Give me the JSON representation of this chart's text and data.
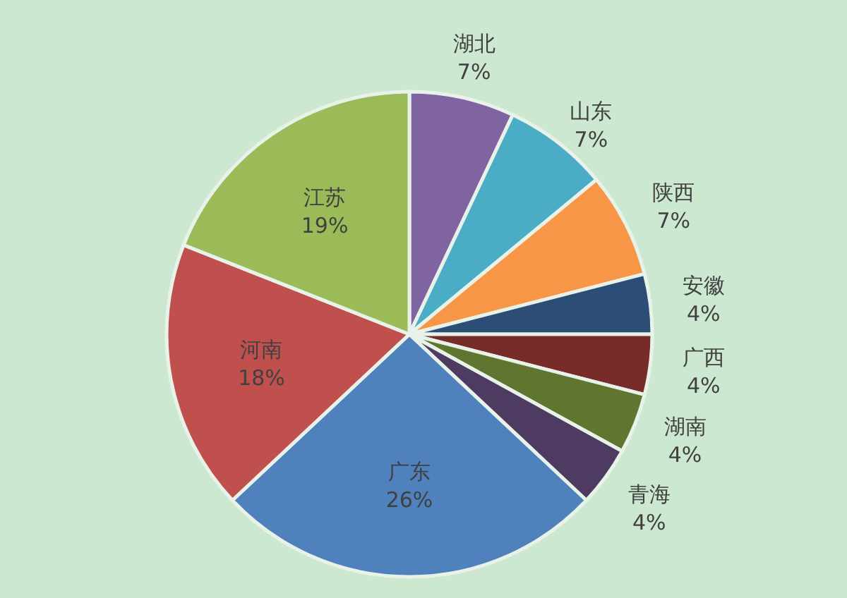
{
  "chart_data": {
    "type": "pie",
    "categories": [
      "湖北",
      "山东",
      "陕西",
      "安徽",
      "广西",
      "湖南",
      "青海",
      "广东",
      "河南",
      "江苏"
    ],
    "values": [
      7,
      7,
      7,
      4,
      4,
      4,
      4,
      26,
      18,
      19
    ],
    "colors": [
      "#8064a2",
      "#4bacc6",
      "#f79646",
      "#2c4d75",
      "#772c2a",
      "#5f7530",
      "#4d3b62",
      "#4f81bd",
      "#c0504d",
      "#9bbb59"
    ],
    "value_labels": [
      "7%",
      "7%",
      "7%",
      "4%",
      "4%",
      "4%",
      "4%",
      "26%",
      "18%",
      "19%"
    ]
  }
}
